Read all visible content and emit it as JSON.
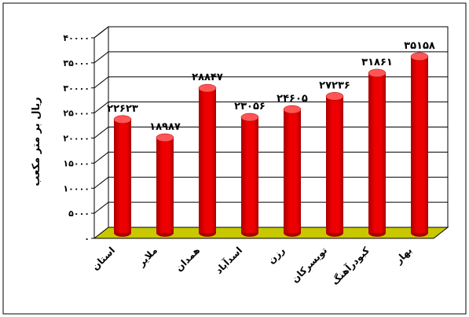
{
  "chart_data": {
    "type": "bar",
    "ylabel": "ریال بر متر مکعب",
    "ylim": [
      0,
      40000
    ],
    "yticks": [
      0,
      5000,
      10000,
      15000,
      20000,
      25000,
      30000,
      35000,
      40000
    ],
    "ytick_labels": [
      "۰",
      "۵۰۰۰",
      "۱۰۰۰۰",
      "۱۵۰۰۰",
      "۲۰۰۰۰",
      "۲۵۰۰۰",
      "۳۰۰۰۰",
      "۳۵۰۰۰",
      "۴۰۰۰۰"
    ],
    "categories": [
      "استان",
      "ملایر",
      "همدان",
      "اسدآباد",
      "رزن",
      "تویسرکان",
      "کبودرآهنگ",
      "بهار"
    ],
    "values": [
      22623,
      18987,
      28847,
      23056,
      24605,
      27236,
      31861,
      35158
    ],
    "value_labels": [
      "۲۲۶۲۳",
      "۱۸۹۸۷",
      "۲۸۸۴۷",
      "۲۳۰۵۶",
      "۲۴۶۰۵",
      "۲۷۲۳۶",
      "۳۱۸۶۱",
      "۳۵۱۵۸"
    ],
    "grid": true,
    "legend": "none",
    "colors": {
      "bar": "#ee0000",
      "bar_dark": "#a80000",
      "bar_top": "#ff5555",
      "floor": "#c8c800",
      "grid": "#000000"
    }
  }
}
